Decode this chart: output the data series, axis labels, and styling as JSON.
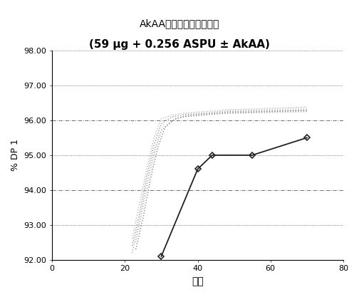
{
  "title_line1": "AkAAが糖化に及ぼす影響",
  "title_line2": "(59 μg + 0.256 ASPU ± AkAA)",
  "xlabel": "時間",
  "ylabel": "% DP 1",
  "xlim": [
    0,
    80
  ],
  "ylim": [
    92.0,
    98.0
  ],
  "xticks": [
    0,
    20,
    40,
    60,
    80
  ],
  "yticks": [
    92.0,
    93.0,
    94.0,
    95.0,
    96.0,
    97.0,
    98.0
  ],
  "dotted_lines": [
    92.0,
    93.0,
    95.0,
    97.0,
    98.0
  ],
  "dashdot_lines": [
    94.0,
    96.0
  ],
  "series_dotted": [
    {
      "x": [
        22,
        24,
        26,
        28,
        30,
        33,
        36,
        42,
        48,
        70
      ],
      "y": [
        92.2,
        93.1,
        94.2,
        95.1,
        95.7,
        96.0,
        96.1,
        96.15,
        96.2,
        96.25
      ],
      "color": "#aaaaaa",
      "linewidth": 1.0
    },
    {
      "x": [
        22,
        24,
        26,
        28,
        30,
        33,
        36,
        42,
        48,
        70
      ],
      "y": [
        92.4,
        93.3,
        94.4,
        95.3,
        95.9,
        96.1,
        96.15,
        96.2,
        96.25,
        96.3
      ],
      "color": "#999999",
      "linewidth": 1.0
    },
    {
      "x": [
        22,
        24,
        26,
        28,
        30,
        33,
        36,
        42,
        48,
        70
      ],
      "y": [
        92.6,
        93.6,
        94.6,
        95.5,
        96.05,
        96.15,
        96.2,
        96.25,
        96.3,
        96.38
      ],
      "color": "#bbbbbb",
      "linewidth": 1.0
    },
    {
      "x": [
        23,
        25,
        27,
        29,
        31,
        34,
        37,
        43,
        49,
        70
      ],
      "y": [
        92.3,
        93.2,
        94.3,
        95.2,
        95.8,
        96.05,
        96.12,
        96.18,
        96.22,
        96.28
      ],
      "color": "#888888",
      "linewidth": 1.0
    },
    {
      "x": [
        23,
        25,
        27,
        29,
        31,
        34,
        37,
        43,
        49,
        70
      ],
      "y": [
        92.5,
        93.5,
        94.5,
        95.4,
        96.0,
        96.12,
        96.18,
        96.22,
        96.28,
        96.35
      ],
      "color": "#cccccc",
      "linewidth": 1.0
    }
  ],
  "series_solid": [
    {
      "x": [
        30,
        40,
        44,
        55,
        70
      ],
      "y": [
        92.1,
        94.6,
        95.0,
        95.0,
        95.5
      ],
      "color": "#222222",
      "linewidth": 1.3,
      "marker": "D",
      "markersize": 4
    }
  ],
  "background_color": "#ffffff"
}
